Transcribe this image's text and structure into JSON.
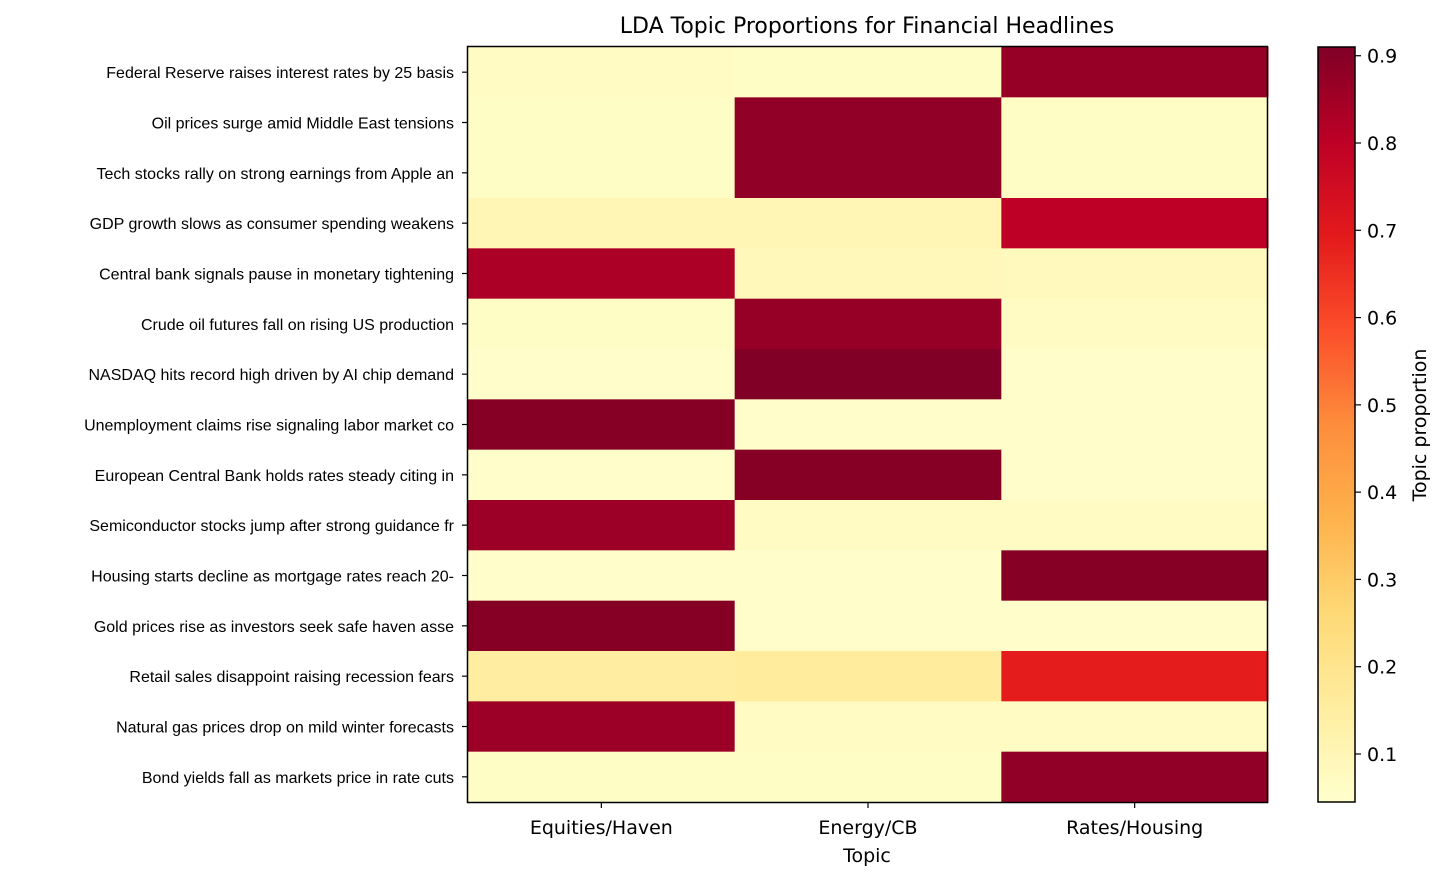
{
  "chart_data": {
    "type": "heatmap",
    "title": "LDA Topic Proportions for Financial Headlines",
    "xlabel": "Topic",
    "ylabel": "",
    "colorbar_label": "Topic proportion",
    "colormap": "YlOrRd",
    "color_range": [
      0.045,
      0.91
    ],
    "colorbar_ticks": [
      0.1,
      0.2,
      0.3,
      0.4,
      0.5,
      0.6,
      0.7,
      0.8,
      0.9
    ],
    "colorbar_tick_labels": [
      "0.1",
      "0.2",
      "0.3",
      "0.4",
      "0.5",
      "0.6",
      "0.7",
      "0.8",
      "0.9"
    ],
    "x_categories": [
      "Equities/Haven",
      "Energy/CB",
      "Rates/Housing"
    ],
    "y_categories": [
      "Federal Reserve raises interest rates by 25 basis ",
      "Oil prices surge amid Middle East tensions",
      "Tech stocks rally on strong earnings from Apple an",
      "GDP growth slows as consumer spending weakens",
      "Central bank signals pause in monetary tightening ",
      "Crude oil futures fall on rising US production",
      "NASDAQ hits record high driven by AI chip demand",
      "Unemployment claims rise signaling labor market co",
      "European Central Bank holds rates steady citing in",
      "Semiconductor stocks jump after strong guidance fr",
      "Housing starts decline as mortgage rates reach 20-",
      "Gold prices rise as investors seek safe haven asse",
      "Retail sales disappoint raising recession fears",
      "Natural gas prices drop on mild winter forecasts",
      "Bond yields fall as markets price in rate cuts"
    ],
    "values": [
      [
        0.07,
        0.06,
        0.87
      ],
      [
        0.06,
        0.88,
        0.06
      ],
      [
        0.06,
        0.88,
        0.06
      ],
      [
        0.1,
        0.1,
        0.8
      ],
      [
        0.83,
        0.09,
        0.08
      ],
      [
        0.06,
        0.87,
        0.07
      ],
      [
        0.05,
        0.91,
        0.05
      ],
      [
        0.9,
        0.05,
        0.05
      ],
      [
        0.05,
        0.9,
        0.05
      ],
      [
        0.86,
        0.07,
        0.07
      ],
      [
        0.05,
        0.05,
        0.9
      ],
      [
        0.9,
        0.05,
        0.05
      ],
      [
        0.15,
        0.16,
        0.69
      ],
      [
        0.86,
        0.07,
        0.07
      ],
      [
        0.06,
        0.06,
        0.88
      ]
    ]
  }
}
